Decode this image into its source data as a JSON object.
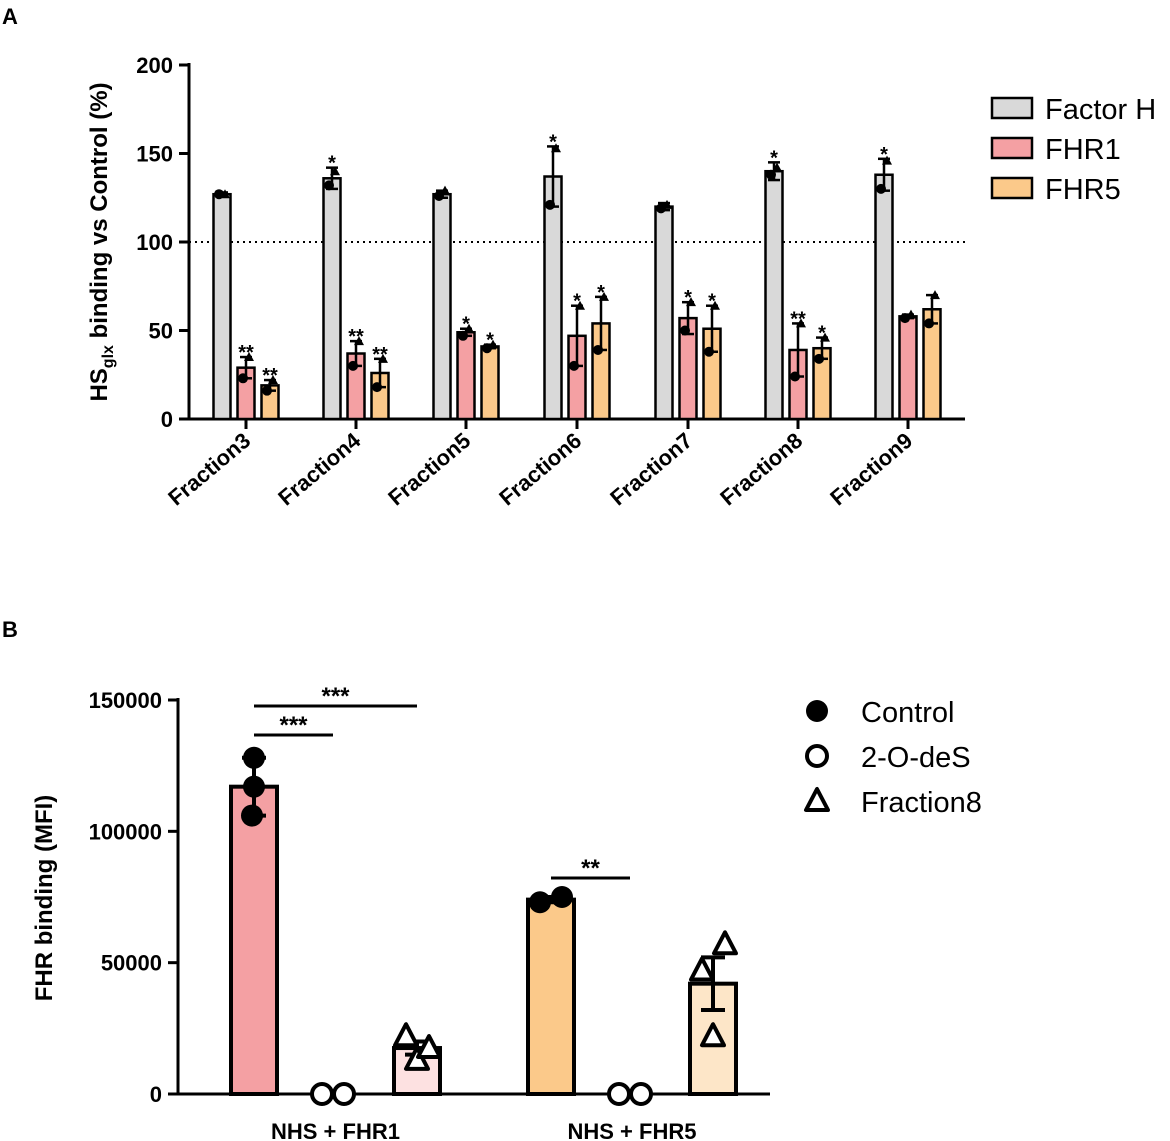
{
  "chart_data": [
    {
      "panel": "A",
      "type": "bar",
      "title": "",
      "xlabel": "",
      "ylabel_main": "HS",
      "ylabel_sub": "glx",
      "ylabel_rest": " binding vs Control (%)",
      "ylim": [
        0,
        200
      ],
      "yticks": [
        "0",
        "50",
        "100",
        "150",
        "200"
      ],
      "reference_line": 100,
      "categories": [
        "Fraction3",
        "Fraction4",
        "Fraction5",
        "Fraction6",
        "Fraction7",
        "Fraction8",
        "Fraction9"
      ],
      "legend_position": "top-right",
      "series": [
        {
          "name": "Factor H",
          "color": "#d9d9d9",
          "values": [
            127,
            136,
            127,
            137,
            120,
            140,
            138
          ],
          "err": [
            1,
            6,
            2,
            17,
            2,
            5,
            9
          ],
          "points": [
            [
              127,
              127
            ],
            [
              132,
              140
            ],
            [
              126,
              129
            ],
            [
              121,
              153
            ],
            [
              119,
              121
            ],
            [
              138,
              142
            ],
            [
              130,
              146
            ]
          ],
          "sig": [
            "",
            "*",
            "",
            "*",
            "",
            "*",
            "*"
          ]
        },
        {
          "name": "FHR1",
          "color": "#f4a0a3",
          "values": [
            29,
            37,
            49,
            47,
            57,
            39,
            58
          ],
          "err": [
            6,
            7,
            2,
            17,
            9,
            15,
            1
          ],
          "points": [
            [
              23,
              35
            ],
            [
              30,
              44
            ],
            [
              47,
              51
            ],
            [
              30,
              64
            ],
            [
              50,
              66
            ],
            [
              24,
              54
            ],
            [
              57,
              59
            ]
          ],
          "sig": [
            "**",
            "**",
            "*",
            "*",
            "*",
            "**",
            ""
          ]
        },
        {
          "name": "FHR5",
          "color": "#fbc98a",
          "values": [
            19,
            26,
            41,
            54,
            51,
            40,
            62
          ],
          "err": [
            3,
            8,
            1,
            15,
            13,
            6,
            8
          ],
          "points": [
            [
              16,
              22
            ],
            [
              18,
              34
            ],
            [
              40,
              42
            ],
            [
              39,
              69
            ],
            [
              38,
              64
            ],
            [
              34,
              46
            ],
            [
              54,
              70
            ]
          ],
          "sig": [
            "**",
            "**",
            "*",
            "*",
            "*",
            "*",
            ""
          ]
        }
      ]
    },
    {
      "panel": "B",
      "type": "bar",
      "title": "",
      "xlabel": "",
      "ylabel": "FHR binding (MFI)",
      "ylim": [
        0,
        150000
      ],
      "yticks": [
        "0",
        "50000",
        "100000",
        "150000"
      ],
      "categories": [
        "NHS + FHR1",
        "NHS + FHR5"
      ],
      "legend_position": "top-right",
      "legend": [
        {
          "name": "Control",
          "marker": "filled-circle"
        },
        {
          "name": "2-O-deS",
          "marker": "open-circle"
        },
        {
          "name": "Fraction8",
          "marker": "open-triangle"
        }
      ],
      "groups": [
        {
          "name": "NHS + FHR1",
          "color": "#f4a0a3",
          "light_color": "#fde1e1",
          "bars": [
            {
              "condition": "Control",
              "value": 117000,
              "err": 11000,
              "points": [
                106000,
                128000,
                117000
              ]
            },
            {
              "condition": "2-O-deS",
              "value": 0,
              "err": 0,
              "points": [
                0,
                0
              ]
            },
            {
              "condition": "Fraction8",
              "value": 17500,
              "err": 2500,
              "points": [
                13000,
                22000,
                17500
              ]
            }
          ]
        },
        {
          "name": "NHS + FHR5",
          "color": "#fbc98a",
          "light_color": "#fde6c8",
          "bars": [
            {
              "condition": "Control",
              "value": 74000,
              "err": 1000,
              "points": [
                73000,
                75000
              ]
            },
            {
              "condition": "2-O-deS",
              "value": 0,
              "err": 0,
              "points": [
                0,
                0
              ]
            },
            {
              "condition": "Fraction8",
              "value": 42000,
              "err": 10000,
              "points": [
                22000,
                47000,
                57000
              ]
            }
          ]
        }
      ],
      "significance": [
        {
          "group": 0,
          "from": 0,
          "to": 1,
          "label": "***"
        },
        {
          "group": 0,
          "from": 0,
          "to": 2,
          "label": "***"
        },
        {
          "group": 1,
          "from": 0,
          "to": 1,
          "label": "**"
        }
      ]
    }
  ]
}
